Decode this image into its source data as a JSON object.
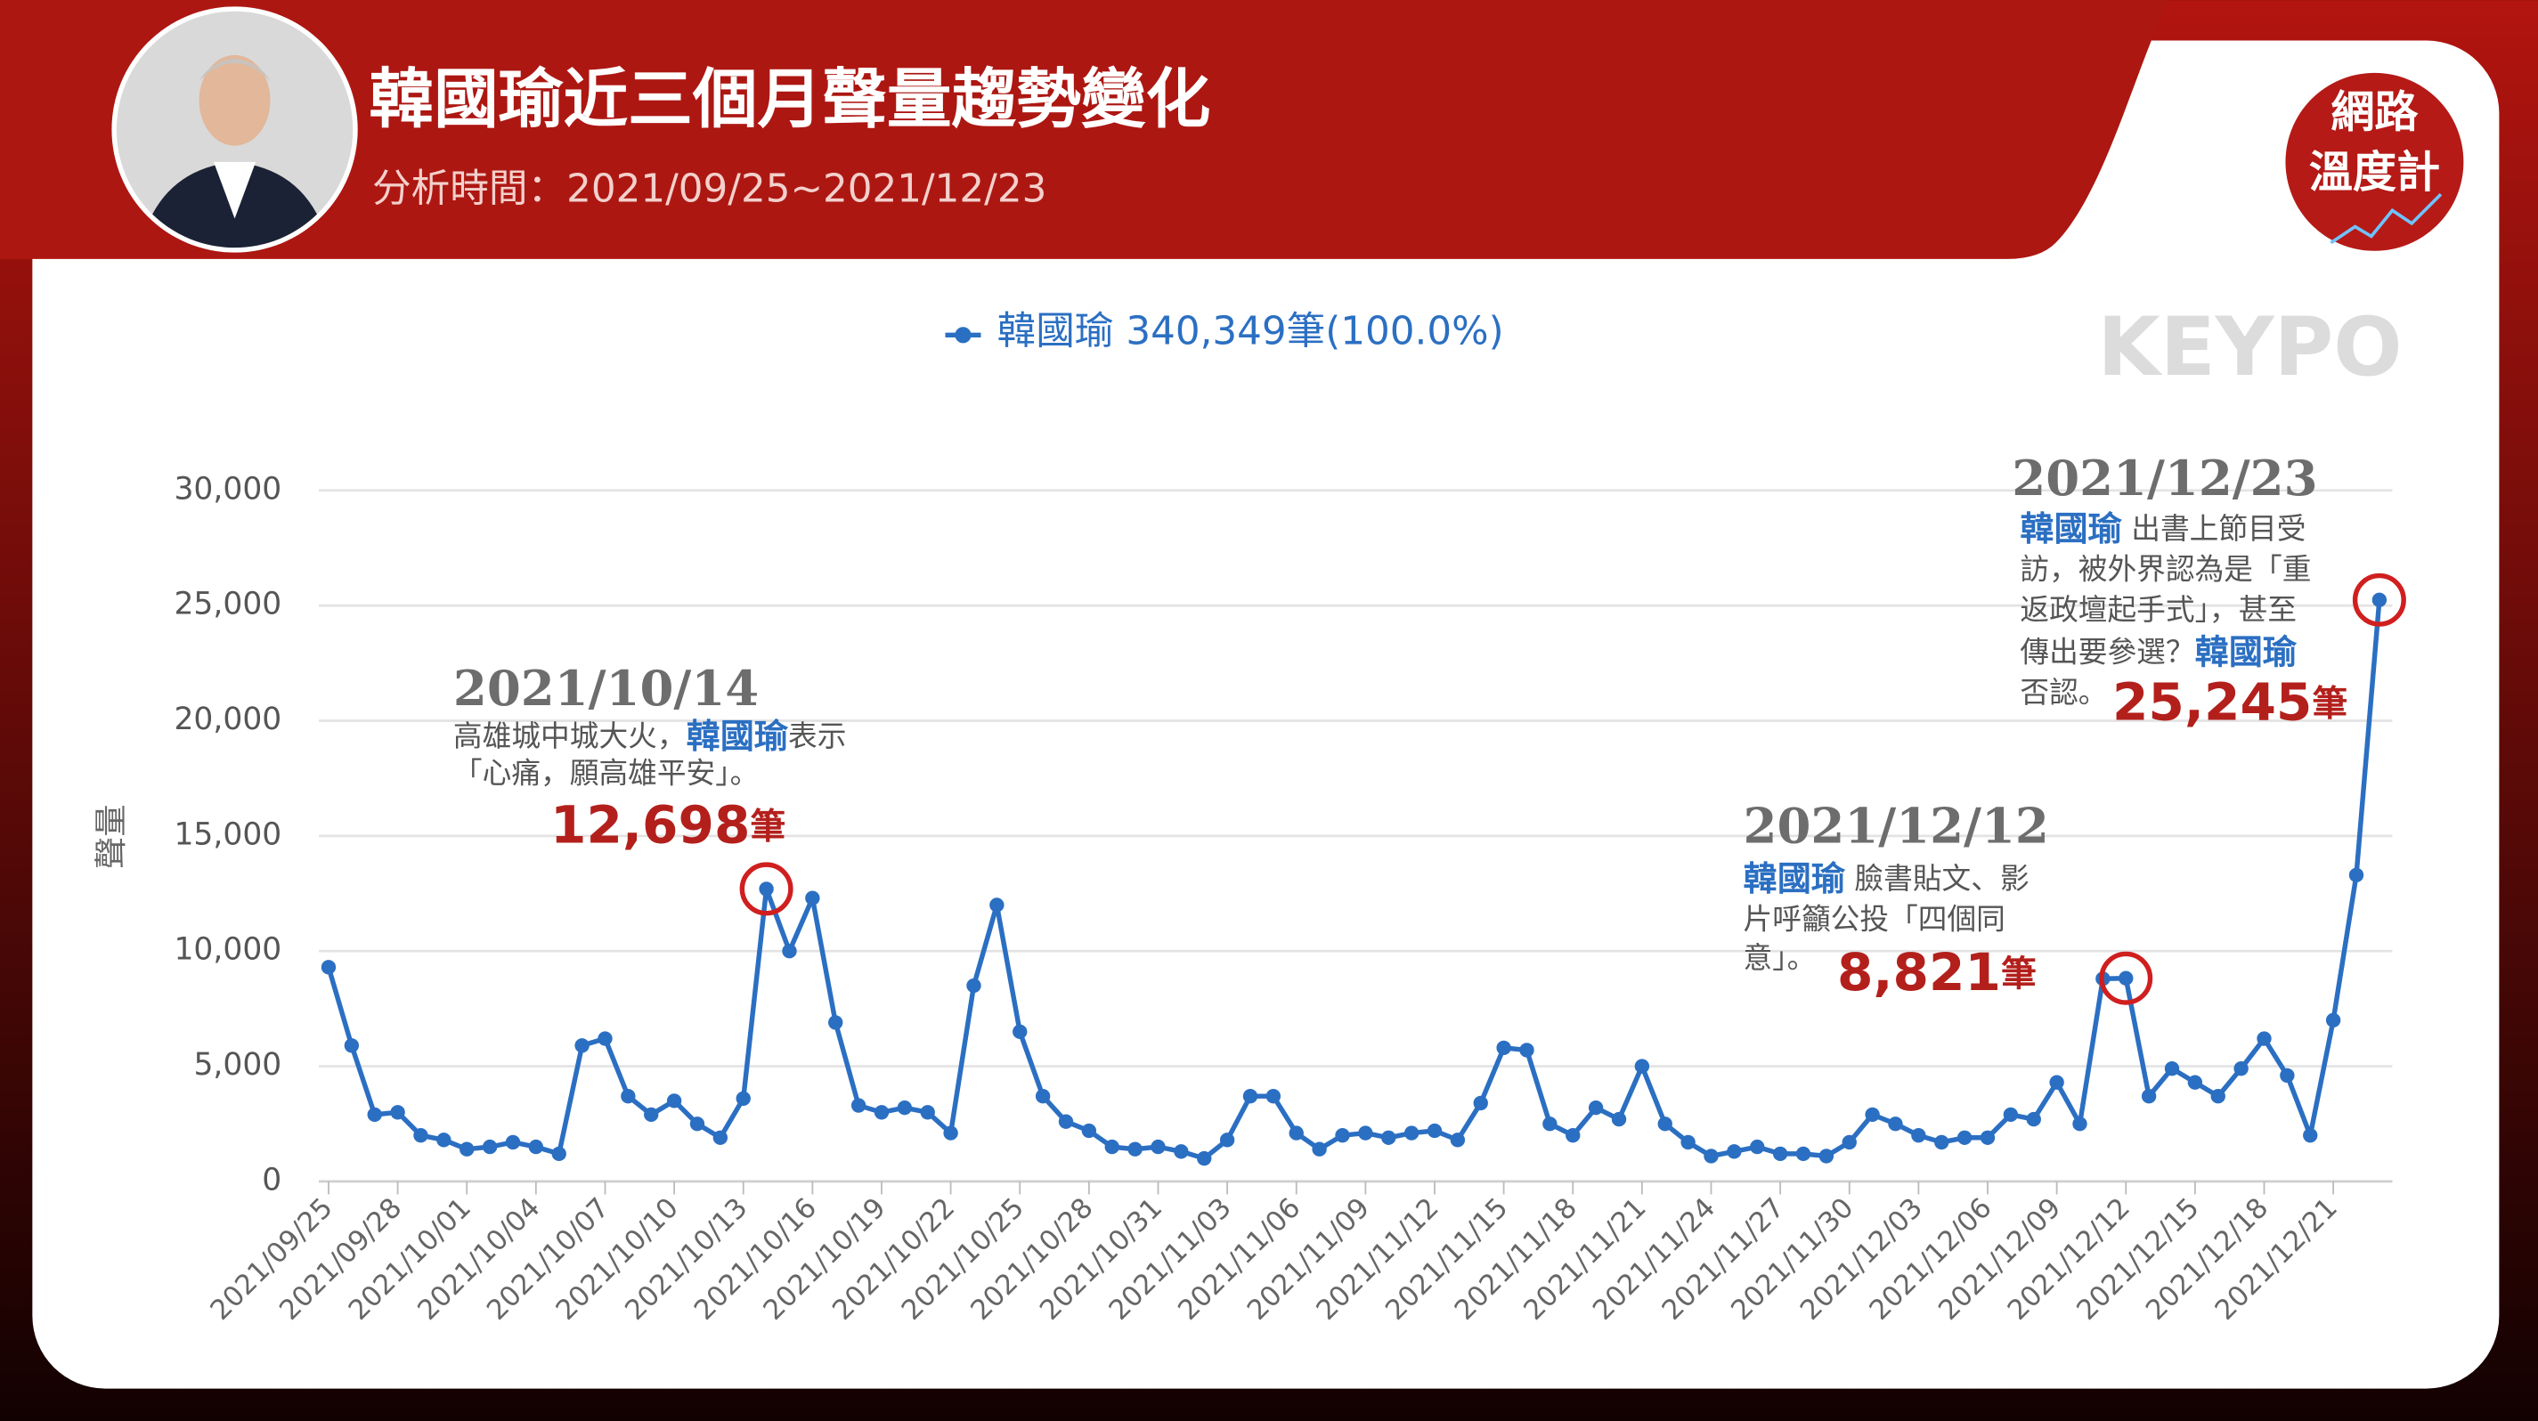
{
  "header": {
    "title": "韓國瑜近三個月聲量趨勢變化",
    "subtitle": "分析時間：2021/09/25~2021/12/23",
    "logo": [
      "網路",
      "溫度計"
    ],
    "watermark": "KEYPO"
  },
  "chart_data": {
    "type": "line",
    "y_label": "聲量",
    "categories": [
      "2021/09/25",
      null,
      null,
      "2021/09/28",
      null,
      null,
      "2021/10/01",
      null,
      null,
      "2021/10/04",
      null,
      null,
      "2021/10/07",
      null,
      null,
      "2021/10/10",
      null,
      null,
      "2021/10/13",
      null,
      null,
      "2021/10/16",
      null,
      null,
      "2021/10/19",
      null,
      null,
      "2021/10/22",
      null,
      null,
      "2021/10/25",
      null,
      null,
      "2021/10/28",
      null,
      null,
      "2021/10/31",
      null,
      null,
      "2021/11/03",
      null,
      null,
      "2021/11/06",
      null,
      null,
      "2021/11/09",
      null,
      null,
      "2021/11/12",
      null,
      null,
      "2021/11/15",
      null,
      null,
      "2021/11/18",
      null,
      null,
      "2021/11/21",
      null,
      null,
      "2021/11/24",
      null,
      null,
      "2021/11/27",
      null,
      null,
      "2021/11/30",
      null,
      null,
      "2021/12/03",
      null,
      null,
      "2021/12/06",
      null,
      null,
      "2021/12/09",
      null,
      null,
      "2021/12/12",
      null,
      null,
      "2021/12/15",
      null,
      null,
      "2021/12/18",
      null,
      null,
      "2021/12/21",
      null,
      null
    ],
    "series": [
      {
        "name": "韓國瑜 340,349筆(100.0%)",
        "color": "#2b6fc2",
        "values": [
          9300,
          5900,
          2900,
          3000,
          2000,
          1800,
          1400,
          1500,
          1700,
          1500,
          1200,
          5900,
          6200,
          3700,
          2900,
          3500,
          2500,
          1900,
          3600,
          12698,
          10000,
          12300,
          6900,
          3300,
          3000,
          3200,
          3000,
          2100,
          8500,
          12000,
          6500,
          3700,
          2600,
          2200,
          1500,
          1400,
          1500,
          1300,
          1000,
          1800,
          3700,
          3700,
          2100,
          1400,
          2000,
          2100,
          1900,
          2100,
          2200,
          1800,
          3400,
          5800,
          5700,
          2500,
          2000,
          3200,
          2700,
          5000,
          2500,
          1700,
          1100,
          1300,
          1500,
          1200,
          1200,
          1100,
          1700,
          2900,
          2500,
          2000,
          1700,
          1900,
          1900,
          2900,
          2700,
          4300,
          2500,
          8800,
          8821,
          3700,
          4900,
          4300,
          3700,
          4900,
          6200,
          4600,
          2000,
          7000,
          13300,
          25245
        ],
        "value_labels": [
          null,
          null,
          null,
          null,
          null,
          null,
          null,
          null,
          null,
          null,
          null,
          null,
          null,
          null,
          null,
          null,
          null,
          null,
          null,
          "12,698筆",
          null,
          null,
          null,
          null,
          null,
          null,
          null,
          null,
          null,
          null,
          null,
          null,
          null,
          null,
          null,
          null,
          null,
          null,
          null,
          null,
          null,
          null,
          null,
          null,
          null,
          null,
          null,
          null,
          null,
          null,
          null,
          null,
          null,
          null,
          null,
          null,
          null,
          null,
          null,
          null,
          null,
          null,
          null,
          null,
          null,
          null,
          null,
          null,
          null,
          null,
          null,
          null,
          null,
          null,
          null,
          null,
          null,
          null,
          "8,821筆",
          null,
          null,
          null,
          null,
          null,
          null,
          null,
          null,
          null,
          null,
          "25,245筆"
        ]
      }
    ],
    "ylim": [
      0,
      30000
    ],
    "yticks": [
      0,
      {
        "value": 5000,
        "label": "5,000"
      },
      {
        "value": 10000,
        "label": "10,000"
      },
      {
        "value": 15000,
        "label": "15,000"
      },
      {
        "value": 20000,
        "label": "20,000"
      },
      {
        "value": 25000,
        "label": "25,000"
      },
      {
        "value": 30000,
        "label": "30,000"
      }
    ],
    "grid": true,
    "annotations": [
      {
        "date": "2021/10/14",
        "lines": [
          [
            {
              "text": "高雄城中城大火，"
            },
            {
              "text": "韓國瑜",
              "highlight": true
            },
            {
              "text": "表示"
            }
          ],
          [
            {
              "text": "「心痛，願高雄平安」。"
            }
          ]
        ]
      },
      {
        "date": "2021/12/12",
        "lines": [
          [
            {
              "text": "韓國瑜",
              "highlight": true
            },
            {
              "text": " 臉書貼文、影"
            }
          ],
          [
            {
              "text": "片呼籲公投「四個同"
            }
          ],
          [
            {
              "text": "意」。"
            }
          ]
        ]
      },
      {
        "date": "2021/12/23",
        "lines": [
          [
            {
              "text": "韓國瑜",
              "highlight": true
            },
            {
              "text": " 出書上節目受"
            }
          ],
          [
            {
              "text": "訪，被外界認為是「重"
            }
          ],
          [
            {
              "text": "返政壇起手式」，甚至"
            }
          ],
          [
            {
              "text": "傳出要參選？"
            },
            {
              "text": "韓國瑜",
              "highlight": true
            }
          ],
          [
            {
              "text": "否認。"
            }
          ]
        ]
      }
    ]
  }
}
